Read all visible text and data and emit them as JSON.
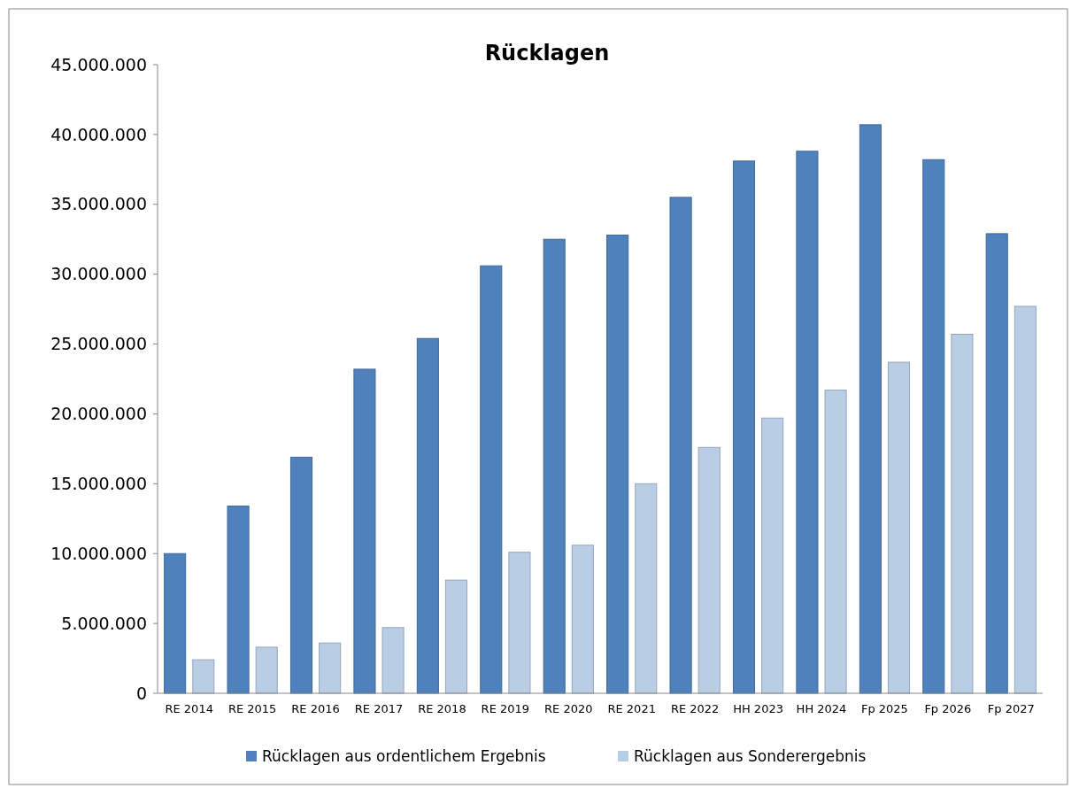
{
  "chart_data": {
    "type": "bar",
    "title": "Rücklagen",
    "categories": [
      "RE 2014",
      "RE 2015",
      "RE 2016",
      "RE 2017",
      "RE 2018",
      "RE 2019",
      "RE 2020",
      "RE 2021",
      "RE 2022",
      "HH 2023",
      "HH 2024",
      "Fp 2025",
      "Fp 2026",
      "Fp 2027"
    ],
    "series": [
      {
        "name": "Rücklagen aus ordentlichem Ergebnis",
        "color": "#4f81bd",
        "values": [
          10000000,
          13400000,
          16900000,
          23200000,
          25400000,
          30600000,
          32500000,
          32800000,
          35500000,
          38100000,
          38800000,
          40700000,
          38200000,
          32900000
        ]
      },
      {
        "name": "Rücklagen aus Sonderergebnis",
        "color": "#b9cde5",
        "values": [
          2400000,
          3300000,
          3600000,
          4700000,
          8100000,
          10100000,
          10600000,
          15000000,
          17600000,
          19700000,
          21700000,
          23700000,
          25700000,
          27700000
        ]
      }
    ],
    "ylim": [
      0,
      45000000
    ],
    "yticks": [
      {
        "value": 0,
        "label": "0"
      },
      {
        "value": 5000000,
        "label": "5.000.000"
      },
      {
        "value": 10000000,
        "label": "10.000.000"
      },
      {
        "value": 15000000,
        "label": "15.000.000"
      },
      {
        "value": 20000000,
        "label": "20.000.000"
      },
      {
        "value": 25000000,
        "label": "25.000.000"
      },
      {
        "value": 30000000,
        "label": "30.000.000"
      },
      {
        "value": 35000000,
        "label": "35.000.000"
      },
      {
        "value": 40000000,
        "label": "40.000.000"
      },
      {
        "value": 45000000,
        "label": "45.000.000"
      }
    ],
    "grid": false,
    "legend": "bottom"
  }
}
